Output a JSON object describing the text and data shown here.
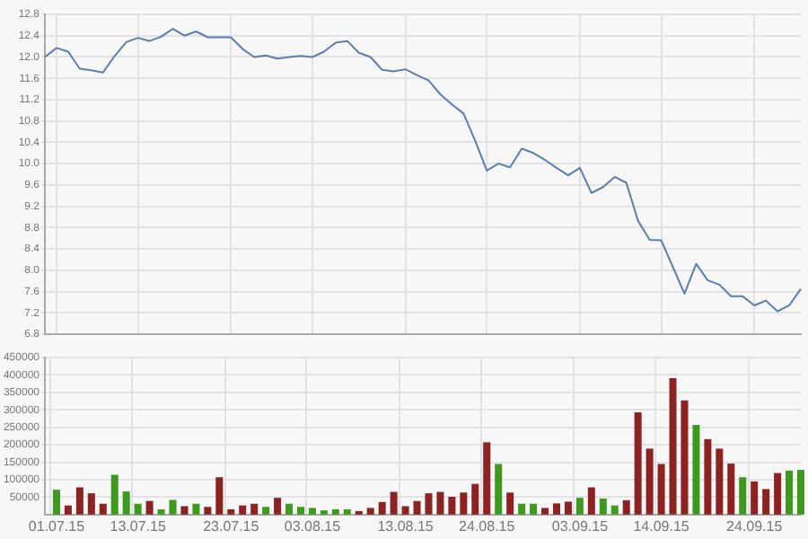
{
  "chart_data": [
    {
      "type": "line",
      "categories": [
        null,
        "01.07.15",
        null,
        null,
        null,
        null,
        null,
        null,
        "13.07.15",
        null,
        null,
        null,
        null,
        null,
        null,
        null,
        "23.07.15",
        null,
        null,
        null,
        null,
        null,
        null,
        "03.08.15",
        null,
        null,
        null,
        null,
        null,
        null,
        null,
        "13.08.15",
        null,
        null,
        null,
        null,
        null,
        null,
        "24.08.15",
        null,
        null,
        null,
        null,
        null,
        null,
        null,
        "03.09.15",
        null,
        null,
        null,
        null,
        null,
        null,
        "14.09.15",
        null,
        null,
        null,
        null,
        null,
        null,
        null,
        "24.09.15",
        null,
        null,
        null,
        null
      ],
      "color": "#5b7fae",
      "marker": "none",
      "tick_labels": "y",
      "grid": true,
      "values": [
        12.0,
        12.17,
        12.1,
        11.78,
        11.75,
        11.71,
        12.02,
        12.28,
        12.36,
        12.3,
        12.38,
        12.53,
        12.4,
        12.48,
        12.37,
        12.37,
        12.37,
        12.15,
        12.0,
        12.03,
        11.97,
        12.0,
        12.02,
        12.0,
        12.1,
        12.27,
        12.3,
        12.08,
        12.0,
        11.76,
        11.73,
        11.77,
        11.66,
        11.56,
        11.3,
        11.11,
        10.94,
        10.43,
        9.87,
        10.0,
        9.93,
        10.28,
        10.2,
        10.07,
        9.92,
        9.78,
        9.92,
        9.45,
        9.56,
        9.75,
        9.64,
        8.93,
        8.57,
        8.56,
        8.06,
        7.56,
        8.12,
        7.81,
        7.73,
        7.51,
        7.51,
        7.34,
        7.43,
        7.23,
        7.34,
        7.65
      ],
      "ylim": [
        6.8,
        12.8
      ],
      "yticks": [
        6.8,
        7.2,
        7.6,
        {
          "value": 8,
          "label": "8.0"
        },
        8.4,
        8.8,
        9.2,
        9.6,
        {
          "value": 10,
          "label": "10.0"
        },
        10.4,
        10.8,
        11.2,
        11.6,
        {
          "value": 12,
          "label": "12.0"
        },
        12.4,
        12.8
      ]
    },
    {
      "type": "bar",
      "categories": [
        null,
        "01.07.15",
        null,
        null,
        null,
        null,
        null,
        null,
        "13.07.15",
        null,
        null,
        null,
        null,
        null,
        null,
        null,
        "23.07.15",
        null,
        null,
        null,
        null,
        null,
        null,
        "03.08.15",
        null,
        null,
        null,
        null,
        null,
        null,
        null,
        "13.08.15",
        null,
        null,
        null,
        null,
        null,
        null,
        "24.08.15",
        null,
        null,
        null,
        null,
        null,
        null,
        null,
        "03.09.15",
        null,
        null,
        null,
        null,
        null,
        null,
        "14.09.15",
        null,
        null,
        null,
        null,
        null,
        null,
        null,
        "24.09.15",
        null,
        null,
        null,
        null
      ],
      "grid": true,
      "values": [
        null,
        71000,
        26000,
        78000,
        61000,
        31000,
        114000,
        66000,
        31000,
        39000,
        15000,
        42000,
        24000,
        31000,
        22000,
        107000,
        15000,
        26000,
        31000,
        22000,
        48000,
        31000,
        22000,
        19000,
        12000,
        15000,
        15000,
        10000,
        19000,
        36000,
        65000,
        24000,
        39000,
        61000,
        65000,
        51000,
        63000,
        88000,
        207000,
        145000,
        63000,
        31000,
        31000,
        19000,
        32000,
        37000,
        48000,
        78000,
        46000,
        26000,
        41000,
        293000,
        189000,
        145000,
        391000,
        327000,
        257000,
        216000,
        189000,
        146000,
        107000,
        95000,
        73000,
        119000,
        126000,
        128000
      ],
      "colors": [
        "#8b2323",
        "#3d9a1e",
        "#8b2323",
        "#8b2323",
        "#8b2323",
        "#8b2323",
        "#3d9a1e",
        "#3d9a1e",
        "#3d9a1e",
        "#8b2323",
        "#3d9a1e",
        "#3d9a1e",
        "#8b2323",
        "#3d9a1e",
        "#8b2323",
        "#8b2323",
        "#8b2323",
        "#8b2323",
        "#8b2323",
        "#3d9a1e",
        "#8b2323",
        "#3d9a1e",
        "#3d9a1e",
        "#3d9a1e",
        "#3d9a1e",
        "#3d9a1e",
        "#3d9a1e",
        "#8b2323",
        "#8b2323",
        "#8b2323",
        "#8b2323",
        "#8b2323",
        "#8b2323",
        "#8b2323",
        "#8b2323",
        "#8b2323",
        "#8b2323",
        "#8b2323",
        "#8b2323",
        "#3d9a1e",
        "#8b2323",
        "#3d9a1e",
        "#3d9a1e",
        "#8b2323",
        "#8b2323",
        "#8b2323",
        "#3d9a1e",
        "#8b2323",
        "#3d9a1e",
        "#3d9a1e",
        "#8b2323",
        "#8b2323",
        "#8b2323",
        "#8b2323",
        "#8b2323",
        "#8b2323",
        "#3d9a1e",
        "#8b2323",
        "#8b2323",
        "#8b2323",
        "#3d9a1e",
        "#8b2323",
        "#8b2323",
        "#8b2323",
        "#3d9a1e",
        "#3d9a1e"
      ],
      "ylim": [
        0,
        450000
      ],
      "yticks": [
        50000,
        100000,
        150000,
        200000,
        250000,
        300000,
        350000,
        400000,
        450000
      ]
    }
  ]
}
